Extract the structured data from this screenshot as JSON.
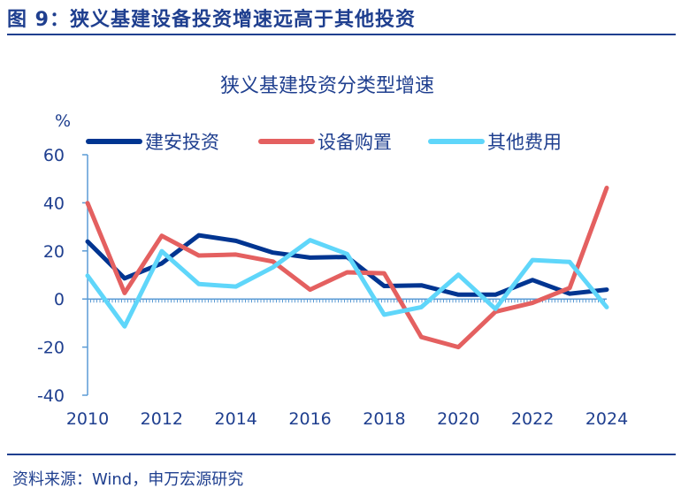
{
  "figure": {
    "title": "图 9：狭义基建设备投资增速远高于其他投资",
    "source": "资料来源：Wind，申万宏源研究"
  },
  "chart_data": {
    "type": "line",
    "title": "狭义基建投资分类型增速",
    "ylabel": "%",
    "xlabel": "",
    "ylim": [
      -40,
      60
    ],
    "yticks": [
      -40,
      -20,
      0,
      20,
      40,
      60
    ],
    "xticks": [
      2010,
      2012,
      2014,
      2016,
      2018,
      2020,
      2022,
      2024
    ],
    "legend_position": "top",
    "grid": false,
    "x": [
      2010,
      2011,
      2012,
      2013,
      2014,
      2015,
      2016,
      2017,
      2018,
      2019,
      2020,
      2021,
      2022,
      2023,
      2024
    ],
    "series": [
      {
        "name": "建安投资",
        "color": "#003591",
        "values": [
          23.9,
          8.6,
          14.8,
          26.5,
          24.2,
          19.3,
          17.2,
          17.5,
          5.4,
          5.7,
          1.8,
          1.8,
          7.9,
          2.2,
          3.9
        ]
      },
      {
        "name": "设备购置",
        "color": "#e46060",
        "values": [
          39.9,
          2.5,
          26.3,
          18.1,
          18.5,
          15.6,
          3.9,
          11.1,
          10.7,
          -15.8,
          -20.0,
          -5.3,
          -1.6,
          4.6,
          46.2
        ]
      },
      {
        "name": "其他费用",
        "color": "#5fd6fa",
        "values": [
          9.7,
          -11.4,
          19.9,
          6.2,
          5.2,
          13.2,
          24.5,
          18.7,
          -6.5,
          -3.4,
          10.1,
          -4.1,
          16.2,
          15.4,
          -3.4
        ]
      }
    ]
  }
}
